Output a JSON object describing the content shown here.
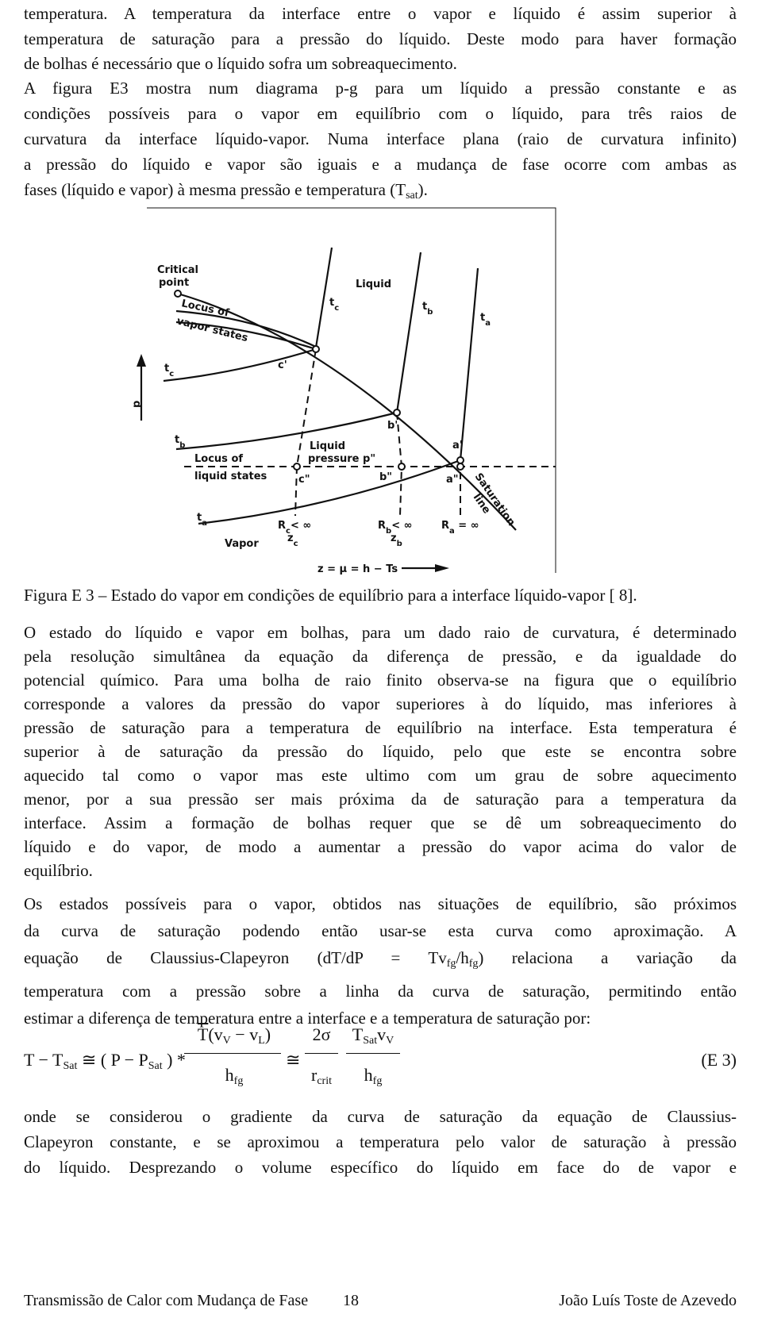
{
  "paragraphs": [
    [
      "temperatura. A temperatura da interface entre o vapor e líquido é assim superior à",
      "temperatura de saturação para a pressão do líquido. Deste modo para haver formação",
      "de bolhas é necessário que o líquido sofra um sobreaquecimento."
    ],
    [
      "A figura E3 mostra num diagrama p-g para um líquido a pressão constante e as",
      "condições possíveis para o vapor em equilíbrio com o líquido, para três raios de",
      "curvatura da interface líquido-vapor. Numa interface plana (raio de curvatura infinito)",
      "a pressão do líquido e vapor são iguais e a mudança de fase ocorre com ambas as",
      [
        {
          "t": "fases (líquido e vapor) à mesma pressão e temperatura (T"
        },
        {
          "s": "sat"
        },
        {
          "t": ")."
        }
      ]
    ],
    [
      "O estado do líquido e vapor em bolhas, para um dado raio de curvatura, é determinado",
      "pela resolução simultânea da equação da diferença de pressão, e da igualdade do",
      "potencial químico. Para uma bolha de raio finito observa-se na figura que o equilíbrio",
      "corresponde a valores da pressão do vapor superiores à do líquido, mas inferiores à",
      "pressão de saturação para a temperatura de equilíbrio na interface. Esta temperatura é",
      "superior à de saturação da pressão do líquido, pelo que este se encontra sobre",
      "aquecido tal como o vapor mas este ultimo com um grau de sobre aquecimento",
      "menor, por a sua pressão ser mais próxima da de saturação para a temperatura da",
      "interface. Assim a formação de bolhas requer que se dê um sobreaquecimento do",
      "líquido e do vapor, de modo a aumentar a pressão do vapor acima do valor de",
      "equilíbrio."
    ],
    [
      "Os estados possíveis para o vapor, obtidos nas situações de equilíbrio, são próximos",
      "da curva de saturação podendo então usar-se esta curva como aproximação. A",
      [
        {
          "t": "equação de Claussius-Clapeyron "
        },
        {
          "t": "(dT/dP = Tv"
        },
        {
          "s": "fg"
        },
        {
          "t": "/h"
        },
        {
          "s": "fg"
        },
        {
          "t": ")"
        },
        {
          "t": " relaciona a variação da"
        }
      ],
      "temperatura com a pressão sobre a linha da curva de saturação, permitindo então",
      "estimar a diferença de temperatura entre a interface e a temperatura de saturação por:"
    ],
    [
      "onde se considerou o gradiente da curva de saturação da equação de Claussius-",
      "Clapeyron constante, e se aproximou a temperatura pelo valor de saturação à pressão",
      "do líquido. Desprezando o volume específico do líquido em face do de vapor e"
    ]
  ],
  "figure": {
    "labels": [
      "Critical",
      "point",
      "Locus of",
      "vapor states",
      "Liquid",
      [
        {
          "t": "t"
        },
        {
          "s": "c"
        }
      ],
      [
        {
          "t": "t"
        },
        {
          "s": "b"
        }
      ],
      [
        {
          "t": "t"
        },
        {
          "s": "a"
        }
      ],
      "p",
      [
        {
          "t": "t"
        },
        {
          "s": "c"
        }
      ],
      "c'",
      "b'",
      "a'",
      [
        {
          "t": "t"
        },
        {
          "s": "b"
        }
      ],
      "Locus of",
      "liquid states",
      "Liquid",
      "pressure p\"",
      "c\"",
      "b\"",
      "a\"",
      "Saturation",
      "line",
      [
        {
          "t": "t"
        },
        {
          "s": "a"
        }
      ],
      [
        {
          "t": "R"
        },
        {
          "s": "c"
        },
        {
          "t": "< ∞"
        }
      ],
      [
        {
          "t": "R"
        },
        {
          "s": "b"
        },
        {
          "t": "< ∞"
        }
      ],
      [
        {
          "t": "R"
        },
        {
          "s": "a"
        },
        {
          "t": " = ∞"
        }
      ],
      "Vapor",
      [
        {
          "t": "z"
        },
        {
          "s": "c"
        }
      ],
      [
        {
          "t": "z"
        },
        {
          "s": "b"
        }
      ],
      "z = μ = h − Ts"
    ],
    "caption": "Figura E 3 – Estado do vapor em condições de equilíbrio para a interface líquido-vapor [ 8]."
  },
  "equation": {
    "lhs": [
      {
        "t": "T − T"
      },
      {
        "s": "Sat"
      },
      {
        "t": " ≅ ( P − P"
      },
      {
        "s": "Sat"
      },
      {
        "t": " ) *"
      }
    ],
    "frac1_num": [
      {
        "t": "T"
      },
      {
        "t": "(v"
      },
      {
        "s": "V"
      },
      {
        "t": " − v"
      },
      {
        "s": "L"
      },
      {
        "t": ")"
      }
    ],
    "frac1_den": [
      {
        "t": "h"
      },
      {
        "s": "fg"
      }
    ],
    "approx": "≅",
    "frac2_num": "2σ",
    "frac2_den": [
      {
        "t": "r"
      },
      {
        "s": "crit"
      }
    ],
    "frac3_num": [
      {
        "t": "T"
      },
      {
        "s": "Sat"
      },
      {
        "t": "v"
      },
      {
        "s": "V"
      }
    ],
    "frac3_den": [
      {
        "t": "h"
      },
      {
        "s": "fg"
      }
    ],
    "label": "(E 3)"
  },
  "footer": {
    "left": "Transmissão de Calor com Mudança de Fase",
    "page": "18",
    "right": "João Luís Toste de Azevedo"
  }
}
